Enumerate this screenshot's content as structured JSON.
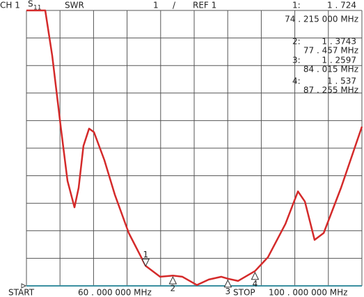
{
  "header": {
    "channel": "CH 1",
    "param": "S",
    "param_sub": "11",
    "format": "SWR",
    "scale": "1",
    "separator": "/",
    "ref": "REF  1"
  },
  "footer": {
    "start": "START",
    "start_freq": "60 . 000 000 MHz",
    "stop": "STOP",
    "stop_freq": "100 . 000 000 MHz"
  },
  "chart_data": {
    "type": "line",
    "xlim": [
      60,
      100
    ],
    "ylim": [
      1,
      11
    ],
    "xticks": [
      60,
      64,
      68,
      72,
      76,
      80,
      84,
      88,
      92,
      96,
      100
    ],
    "yticks": [
      1,
      2,
      3,
      4,
      5,
      6,
      7,
      8,
      9,
      10,
      11
    ],
    "grid": true,
    "series": [
      {
        "color": "#d42a2a",
        "x": [
          60,
          62.24,
          63.07,
          64.07,
          64.9,
          65.73,
          66.22,
          66.8,
          67.47,
          68.05,
          69.29,
          70.54,
          72.2,
          74.215,
          75.93,
          77.457,
          78.6,
          80.33,
          81.74,
          83.24,
          84.015,
          85.23,
          87.255,
          88.8,
          90.88,
          92.37,
          93.2,
          94.36,
          95.44,
          97.51,
          100
        ],
        "values": [
          11,
          11,
          9.36,
          6.83,
          4.81,
          3.85,
          4.56,
          6.08,
          6.71,
          6.58,
          5.57,
          4.31,
          2.92,
          1.724,
          1.33,
          1.3743,
          1.33,
          1.03,
          1.23,
          1.33,
          1.2597,
          1.18,
          1.537,
          2.04,
          3.25,
          4.43,
          4.06,
          2.67,
          2.92,
          4.56,
          6.78
        ]
      }
    ],
    "markers": [
      {
        "name": "1",
        "index_label": "1:",
        "x": 74.215,
        "y": 1.724,
        "x_label": "74 . 215 000 MHz",
        "y_label": "1 . 724"
      },
      {
        "name": "2",
        "index_label": "2:",
        "x": 77.457,
        "y": 1.3743,
        "x_label": "77 . 457 MHz",
        "y_label": "1 . 3743"
      },
      {
        "name": "3",
        "index_label": "3:",
        "x": 84.015,
        "y": 1.2597,
        "x_label": "84 . 015 MHz",
        "y_label": "1 . 2597"
      },
      {
        "name": "4",
        "index_label": "4:",
        "x": 87.255,
        "y": 1.537,
        "x_label": "87 . 255 MHz",
        "y_label": "1 . 537"
      }
    ]
  }
}
